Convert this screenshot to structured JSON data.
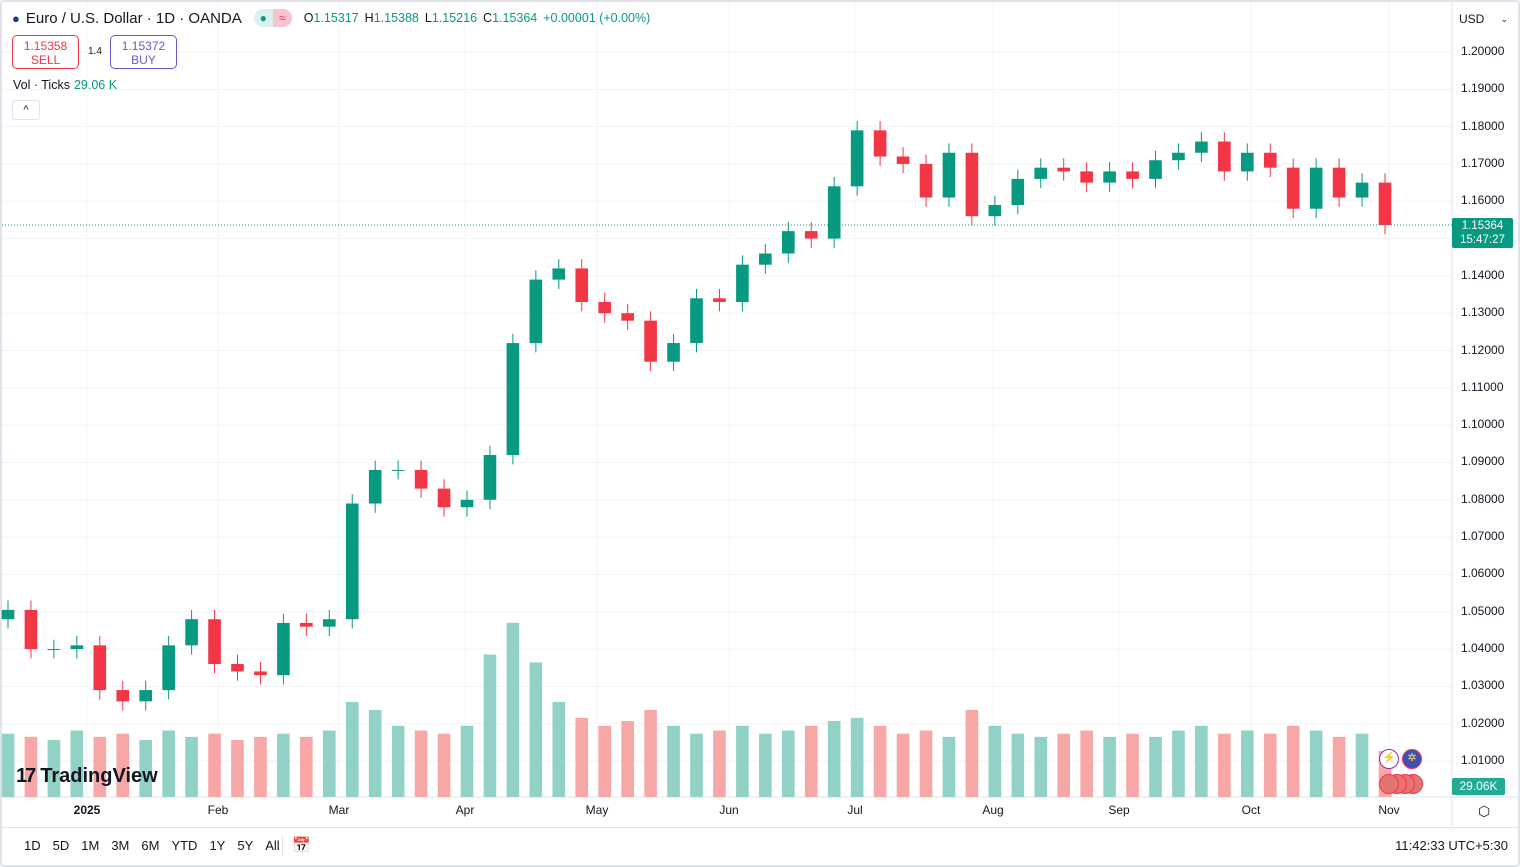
{
  "header": {
    "symbol": "Euro / U.S. Dollar · 1D · OANDA",
    "market_status_icon": "market-open-dot",
    "data_icon": "≈",
    "ohlc": {
      "o_label": "O",
      "o": "1.15317",
      "h_label": "H",
      "h": "1.15388",
      "l_label": "L",
      "l": "1.15216",
      "c_label": "C",
      "c": "1.15364",
      "change": "+0.00001 (+0.00%)"
    }
  },
  "trade": {
    "sell_price": "1.15358",
    "sell_label": "SELL",
    "spread": "1.4",
    "buy_price": "1.15372",
    "buy_label": "BUY"
  },
  "volume_legend": {
    "label": "Vol · Ticks",
    "value": "29.06 K"
  },
  "currency_selector": {
    "value": "USD",
    "icon": "chevron-down-icon"
  },
  "price_axis": {
    "ticks": [
      "1.20000",
      "1.19000",
      "1.18000",
      "1.17000",
      "1.16000",
      "1.14000",
      "1.13000",
      "1.12000",
      "1.11000",
      "1.10000",
      "1.09000",
      "1.08000",
      "1.07000",
      "1.06000",
      "1.05000",
      "1.04000",
      "1.03000",
      "1.02000",
      "1.01000"
    ]
  },
  "last_price": {
    "price": "1.15364",
    "countdown": "15:47:27",
    "volume": "29.06K"
  },
  "time_axis": {
    "labels": [
      "2025",
      "Feb",
      "Mar",
      "Apr",
      "May",
      "Jun",
      "Jul",
      "Aug",
      "Sep",
      "Oct",
      "Nov"
    ]
  },
  "bottom_bar": {
    "ranges": [
      "1D",
      "5D",
      "1M",
      "3M",
      "6M",
      "YTD",
      "1Y",
      "5Y",
      "All"
    ],
    "clock": "11:42:33 UTC+5:30"
  },
  "logo": "TradingView",
  "colors": {
    "up": "#089981",
    "down": "#f23645",
    "vol_up": "#92d2c6",
    "vol_down": "#f7a8a6",
    "price_line": "#089981"
  },
  "chart_data": {
    "type": "candlestick",
    "title": "Euro / U.S. Dollar · 1D · OANDA",
    "ylim": [
      1.0,
      1.2
    ],
    "grid": true,
    "first_open": 1.048,
    "closes": [
      1.0505,
      1.04,
      1.04,
      1.041,
      1.029,
      1.026,
      1.029,
      1.041,
      1.048,
      1.036,
      1.034,
      1.033,
      1.047,
      1.046,
      1.048,
      1.079,
      1.088,
      1.088,
      1.083,
      1.078,
      1.08,
      1.092,
      1.122,
      1.139,
      1.142,
      1.133,
      1.13,
      1.128,
      1.117,
      1.122,
      1.134,
      1.133,
      1.143,
      1.146,
      1.152,
      1.15,
      1.164,
      1.179,
      1.172,
      1.17,
      1.161,
      1.173,
      1.156,
      1.159,
      1.166,
      1.169,
      1.168,
      1.165,
      1.168,
      1.166,
      1.171,
      1.173,
      1.176,
      1.168,
      1.173,
      1.169,
      1.158,
      1.169,
      1.161,
      1.165,
      1.15364
    ],
    "volumes_k": [
      40,
      38,
      36,
      42,
      38,
      40,
      36,
      42,
      38,
      40,
      36,
      38,
      40,
      38,
      42,
      60,
      55,
      45,
      42,
      40,
      45,
      90,
      110,
      85,
      60,
      50,
      45,
      48,
      55,
      45,
      40,
      42,
      45,
      40,
      42,
      45,
      48,
      50,
      45,
      40,
      42,
      38,
      55,
      45,
      40,
      38,
      40,
      42,
      38,
      40,
      38,
      42,
      45,
      40,
      42,
      40,
      45,
      42,
      38,
      40,
      29.06
    ]
  }
}
